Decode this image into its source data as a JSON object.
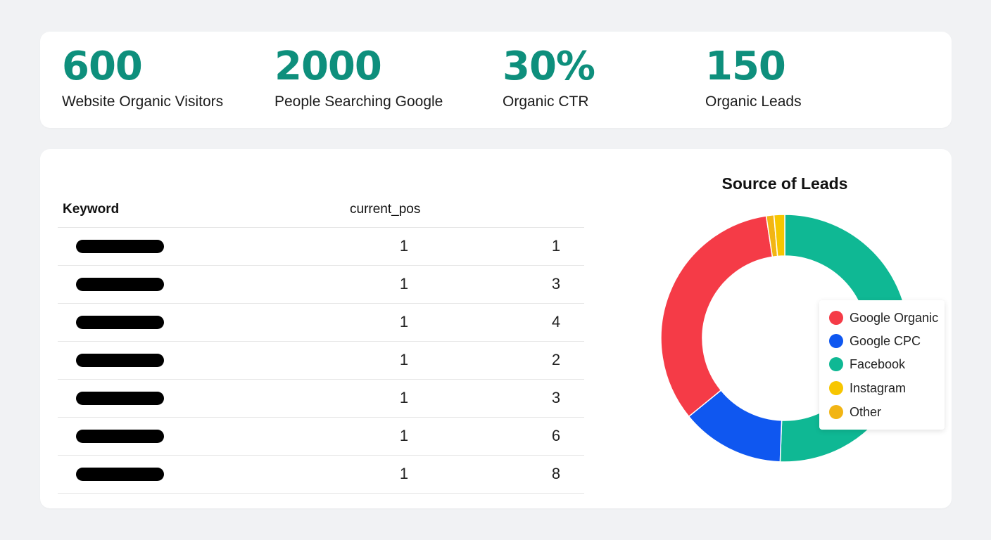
{
  "kpis": [
    {
      "value": "600",
      "label": "Website Organic Visitors"
    },
    {
      "value": "2000",
      "label": "People Searching Google"
    },
    {
      "value": "30%",
      "label": "Organic CTR"
    },
    {
      "value": "150",
      "label": "Organic Leads"
    }
  ],
  "table": {
    "headers": {
      "keyword": "Keyword",
      "current_pos": "current_pos"
    },
    "rows": [
      {
        "current_pos": "1",
        "value": "1"
      },
      {
        "current_pos": "1",
        "value": "3"
      },
      {
        "current_pos": "1",
        "value": "4"
      },
      {
        "current_pos": "1",
        "value": "2"
      },
      {
        "current_pos": "1",
        "value": "3"
      },
      {
        "current_pos": "1",
        "value": "6"
      },
      {
        "current_pos": "1",
        "value": "8"
      }
    ]
  },
  "chart_data": {
    "type": "pie",
    "title": "Source of Leads",
    "legend_position": "right",
    "categories": [
      "Google Organic",
      "Google CPC",
      "Facebook",
      "Instagram",
      "Other"
    ],
    "values": [
      33.5,
      13.5,
      50.6,
      1.4,
      1.0
    ],
    "slice_order": [
      "Facebook",
      "Google CPC",
      "Google Organic",
      "Other",
      "Instagram"
    ],
    "colors": {
      "Google Organic": "#f53b47",
      "Google CPC": "#0f57f0",
      "Facebook": "#0fb894",
      "Instagram": "#f7c600",
      "Other": "#f2b514"
    }
  }
}
